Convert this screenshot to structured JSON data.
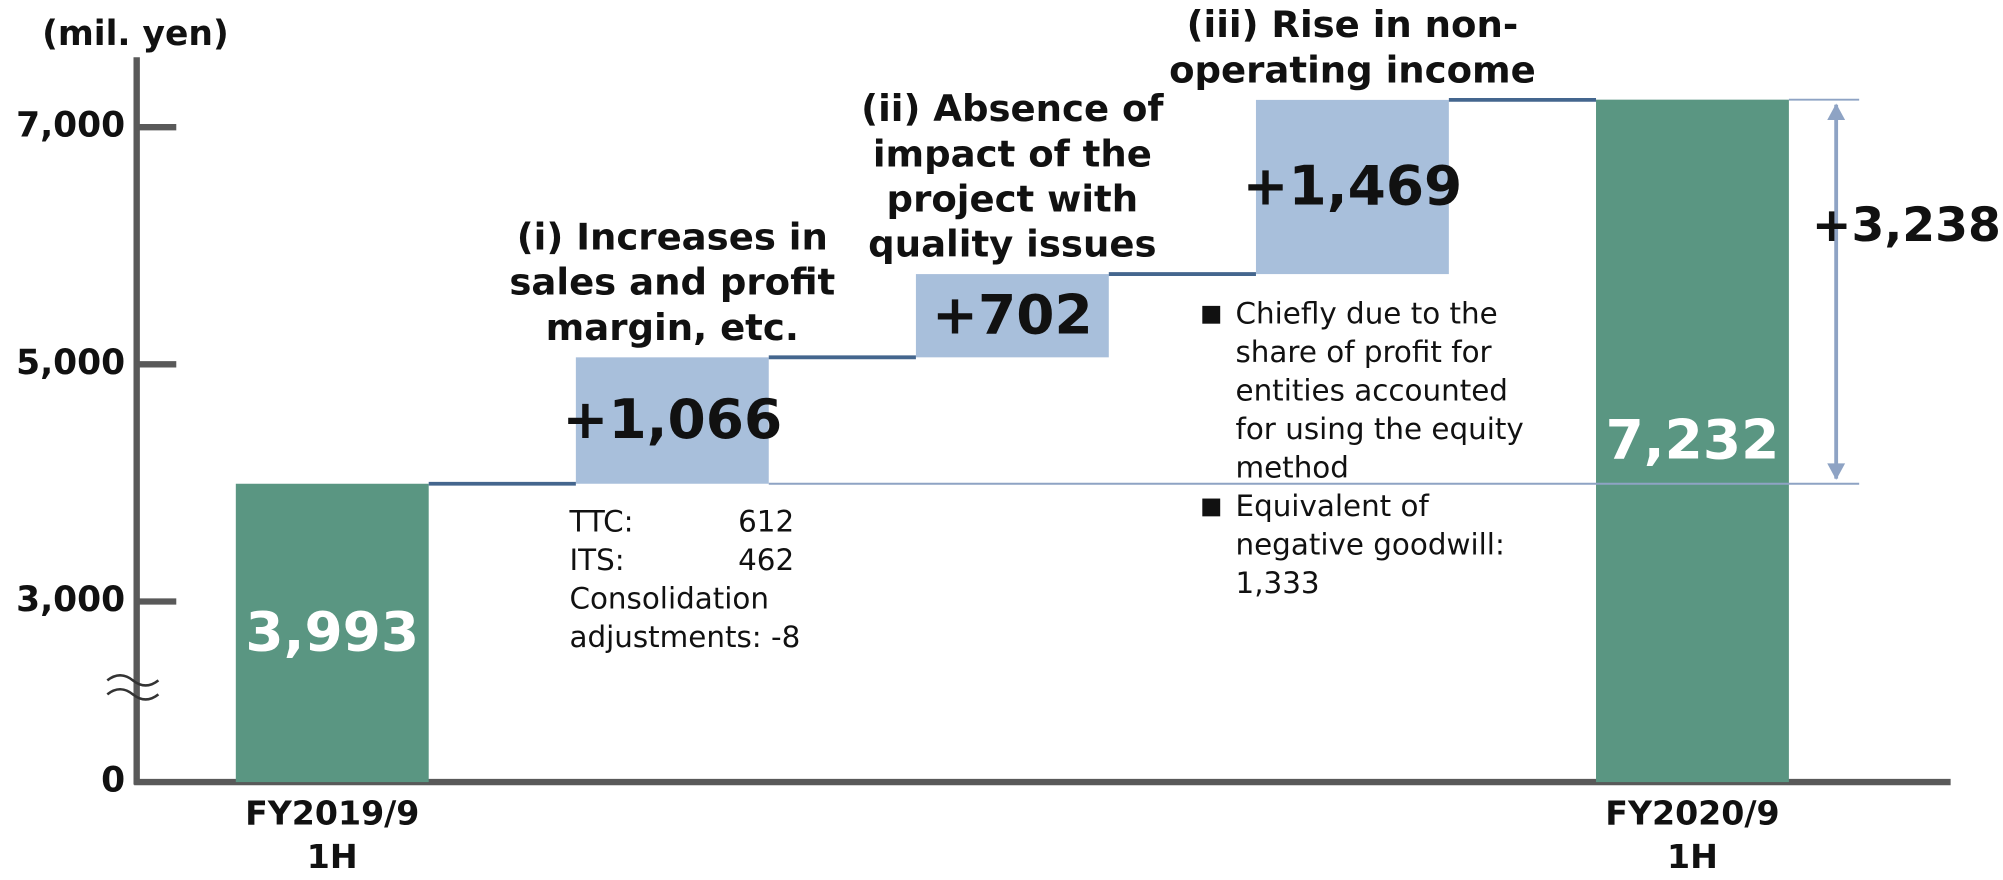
{
  "chart_data": {
    "type": "waterfall",
    "y_unit": "(mil. yen)",
    "categories": [
      [
        "FY2019/9",
        "1H"
      ],
      [
        "(i) Increases in",
        "sales and profit",
        "margin, etc."
      ],
      [
        "(ii) Absence of",
        "impact of the",
        "project with",
        "quality issues"
      ],
      [
        "(iii) Rise in non-",
        "operating income"
      ],
      [
        "FY2020/9",
        "1H"
      ]
    ],
    "measures": [
      "total",
      "step",
      "step",
      "step",
      "total"
    ],
    "values": [
      3993,
      1066,
      702,
      1469,
      7232
    ],
    "value_labels": [
      "3,993",
      "+1,066",
      "+702",
      "+1,469",
      "7,232"
    ],
    "colors": {
      "total": "#5a9682",
      "step": "#a8bfdb",
      "connector": "#44668e",
      "guide": "#8ea3c4"
    },
    "ylim": [
      0,
      7600
    ],
    "yticks": [
      0,
      {
        "value": 3000,
        "label": "3,000"
      },
      {
        "value": 5000,
        "label": "5,000"
      },
      {
        "value": 7000,
        "label": "7,000"
      }
    ],
    "axis_break": true,
    "difference": {
      "value": 3238,
      "label": "+3,238"
    },
    "notes": [
      {
        "category": 1,
        "rows": [
          [
            "TTC:",
            "612"
          ],
          [
            "ITS:",
            "462"
          ],
          [
            "Consolidation"
          ],
          [
            "adjustments: -8"
          ]
        ]
      },
      {
        "category": 3,
        "bullets": [
          [
            "Chiefly due to the",
            "share of profit for",
            "entities accounted",
            "for using the equity",
            "method"
          ],
          [
            "Equivalent of",
            "negative goodwill:",
            "1,333"
          ]
        ]
      }
    ]
  }
}
